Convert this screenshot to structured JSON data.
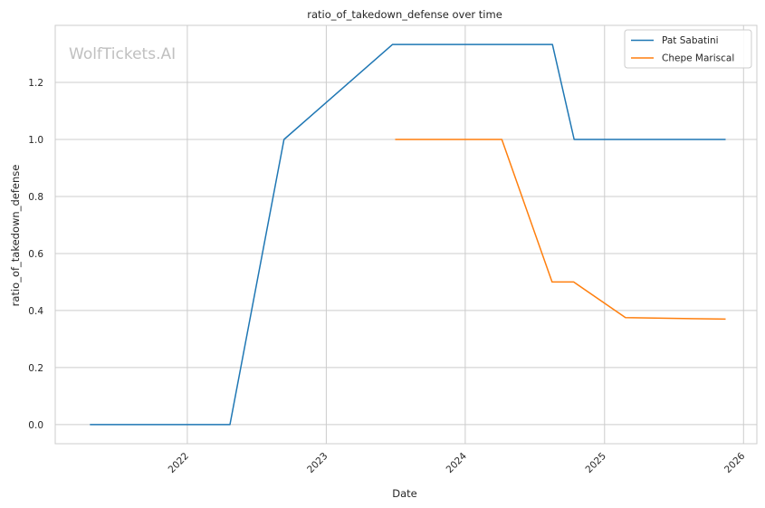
{
  "chart_data": {
    "type": "line",
    "title": "ratio_of_takedown_defense over time",
    "xlabel": "Date",
    "ylabel": "ratio_of_takedown_defense",
    "watermark": "WolfTickets.AI",
    "x_ticks": [
      "2022",
      "2023",
      "2024",
      "2025",
      "2026"
    ],
    "y_ticks": [
      "0.0",
      "0.2",
      "0.4",
      "0.6",
      "0.8",
      "1.0",
      "1.2"
    ],
    "xlim": [
      "2021-01-19",
      "2026-02-05"
    ],
    "ylim": [
      -0.067,
      1.4
    ],
    "grid": true,
    "legend_position": "top-right",
    "series": [
      {
        "name": "Pat Sabatini",
        "color": "#1f77b4",
        "points": [
          [
            "2021-04-20",
            0.0
          ],
          [
            "2022-04-23",
            0.0
          ],
          [
            "2022-09-12",
            1.0
          ],
          [
            "2023-06-24",
            1.333
          ],
          [
            "2024-08-17",
            1.333
          ],
          [
            "2024-10-13",
            1.0
          ],
          [
            "2025-11-15",
            1.0
          ]
        ]
      },
      {
        "name": "Chepe Mariscal",
        "color": "#ff7f0e",
        "points": [
          [
            "2023-07-01",
            1.0
          ],
          [
            "2024-04-06",
            1.0
          ],
          [
            "2024-08-16",
            0.5
          ],
          [
            "2024-10-12",
            0.5
          ],
          [
            "2025-02-25",
            0.375
          ],
          [
            "2025-11-15",
            0.37
          ]
        ]
      }
    ]
  }
}
